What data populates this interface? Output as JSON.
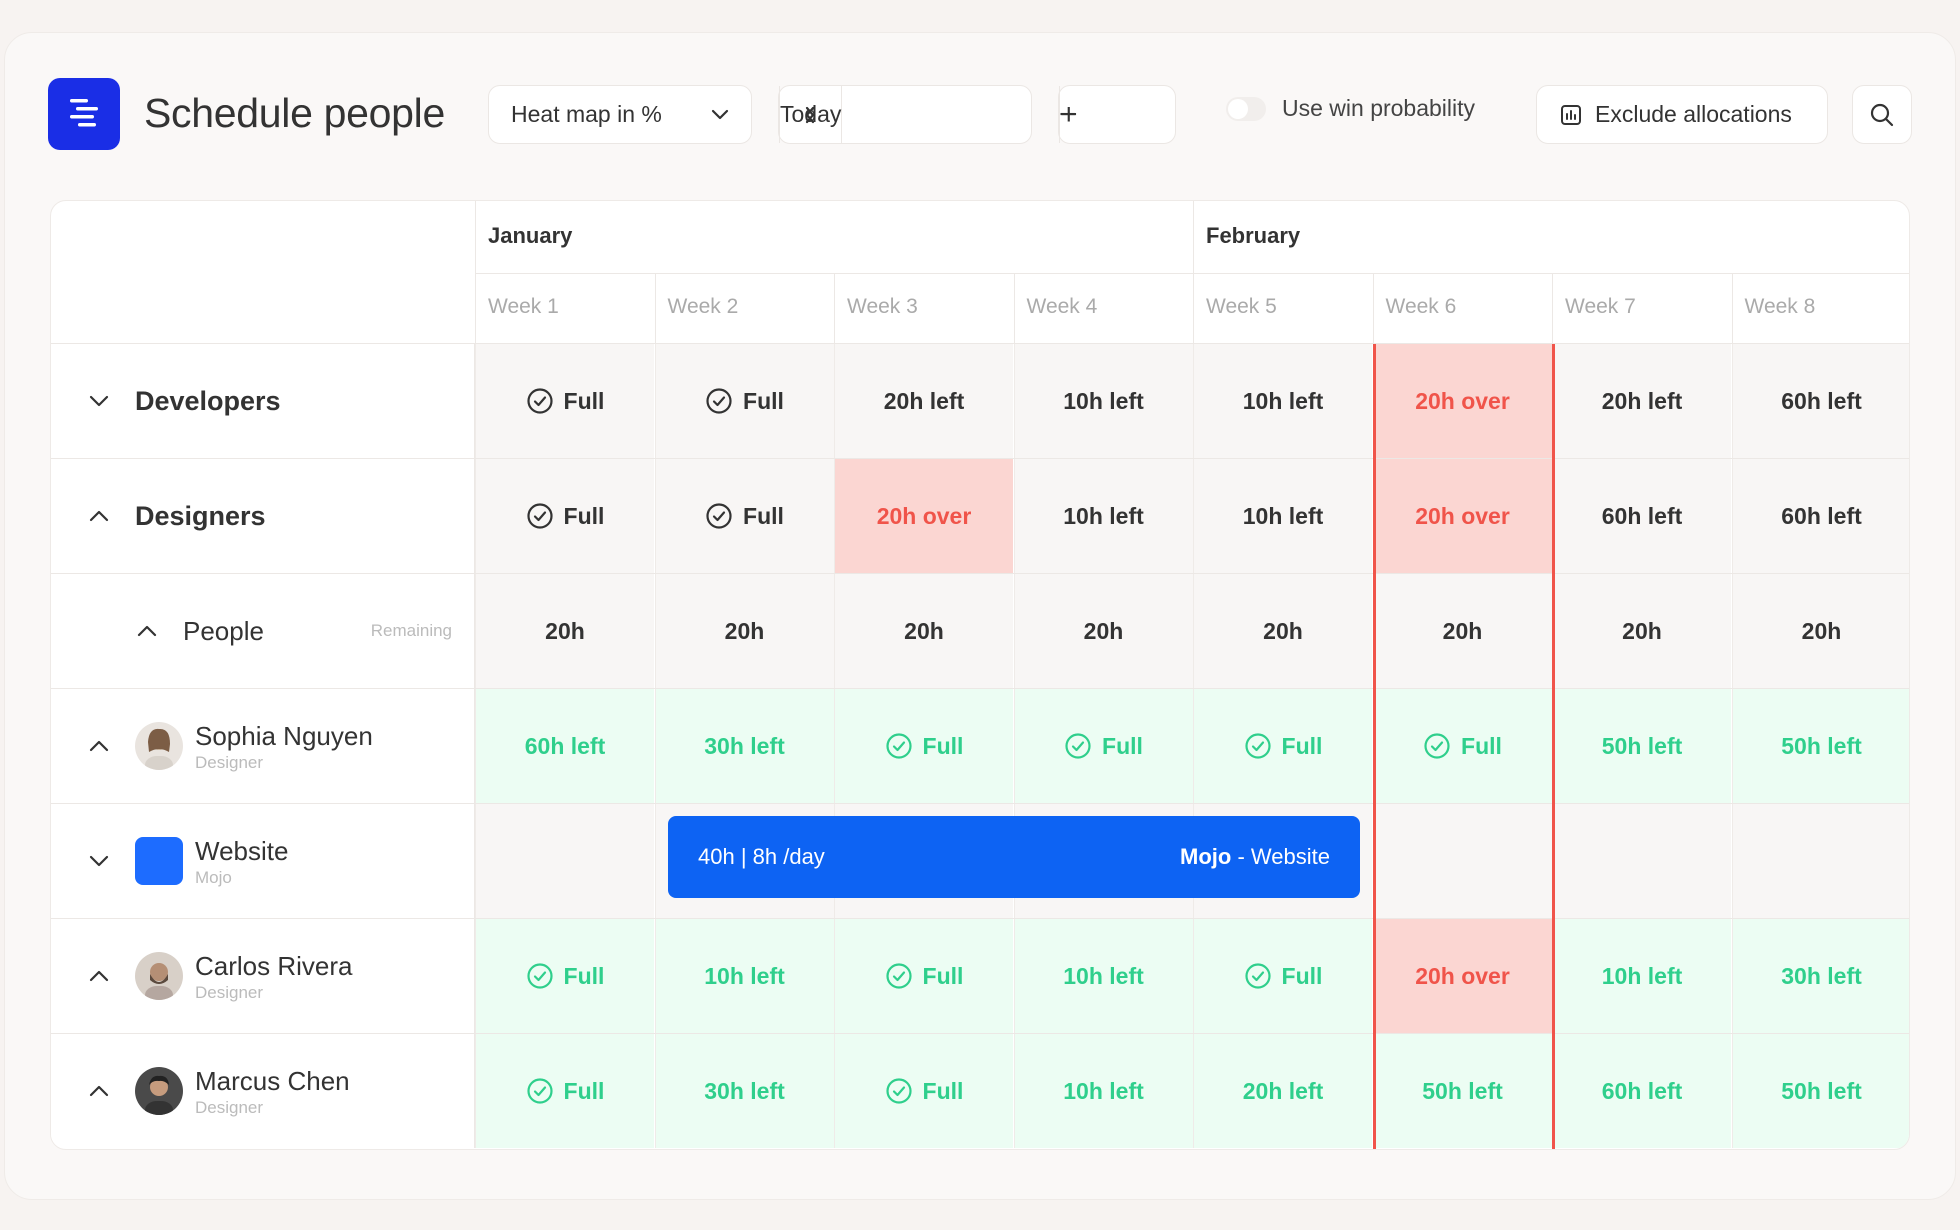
{
  "header": {
    "title": "Schedule people",
    "view_select": "Heat map in %",
    "today_label": "Today",
    "zoom_out": "−",
    "zoom_in": "+",
    "win_probability_label": "Use win probability",
    "exclude_label": "Exclude allocations"
  },
  "months": [
    {
      "label": "January"
    },
    {
      "label": "February"
    }
  ],
  "weeks": [
    "Week 1",
    "Week 2",
    "Week 3",
    "Week 4",
    "Week 5",
    "Week 6",
    "Week 7",
    "Week 8"
  ],
  "rows": {
    "developers": {
      "label": "Developers",
      "cells": [
        "Full",
        "Full",
        "20h left",
        "10h left",
        "10h left",
        "20h over",
        "20h left",
        "60h left"
      ]
    },
    "designers": {
      "label": "Designers",
      "cells": [
        "Full",
        "Full",
        "20h over",
        "10h left",
        "10h left",
        "20h over",
        "60h left",
        "60h left"
      ]
    },
    "people": {
      "label": "People",
      "remaining": "Remaining",
      "cells": [
        "20h",
        "20h",
        "20h",
        "20h",
        "20h",
        "20h",
        "20h",
        "20h"
      ]
    },
    "sophia": {
      "name": "Sophia Nguyen",
      "role": "Designer",
      "cells": [
        "60h left",
        "30h left",
        "Full",
        "Full",
        "Full",
        "Full",
        "50h left",
        "50h left"
      ]
    },
    "website": {
      "name": "Website",
      "client": "Mojo"
    },
    "carlos": {
      "name": "Carlos Rivera",
      "role": "Designer",
      "cells": [
        "Full",
        "10h left",
        "Full",
        "10h left",
        "Full",
        "20h over",
        "10h left",
        "30h left"
      ]
    },
    "marcus": {
      "name": "Marcus Chen",
      "role": "Designer",
      "cells": [
        "Full",
        "30h left",
        "Full",
        "10h left",
        "20h left",
        "50h left",
        "60h left",
        "50h left"
      ]
    }
  },
  "allocation": {
    "hours": "40h | 8h /day",
    "client": "Mojo",
    "project": " - Website"
  },
  "colors": {
    "accent": "#1a2ee6",
    "allocation": "#0d63f3",
    "over": "#f0544a",
    "over_bg": "#fbd6d2",
    "ok": "#2fcf8c",
    "ok_bg": "#ecfdf3"
  }
}
